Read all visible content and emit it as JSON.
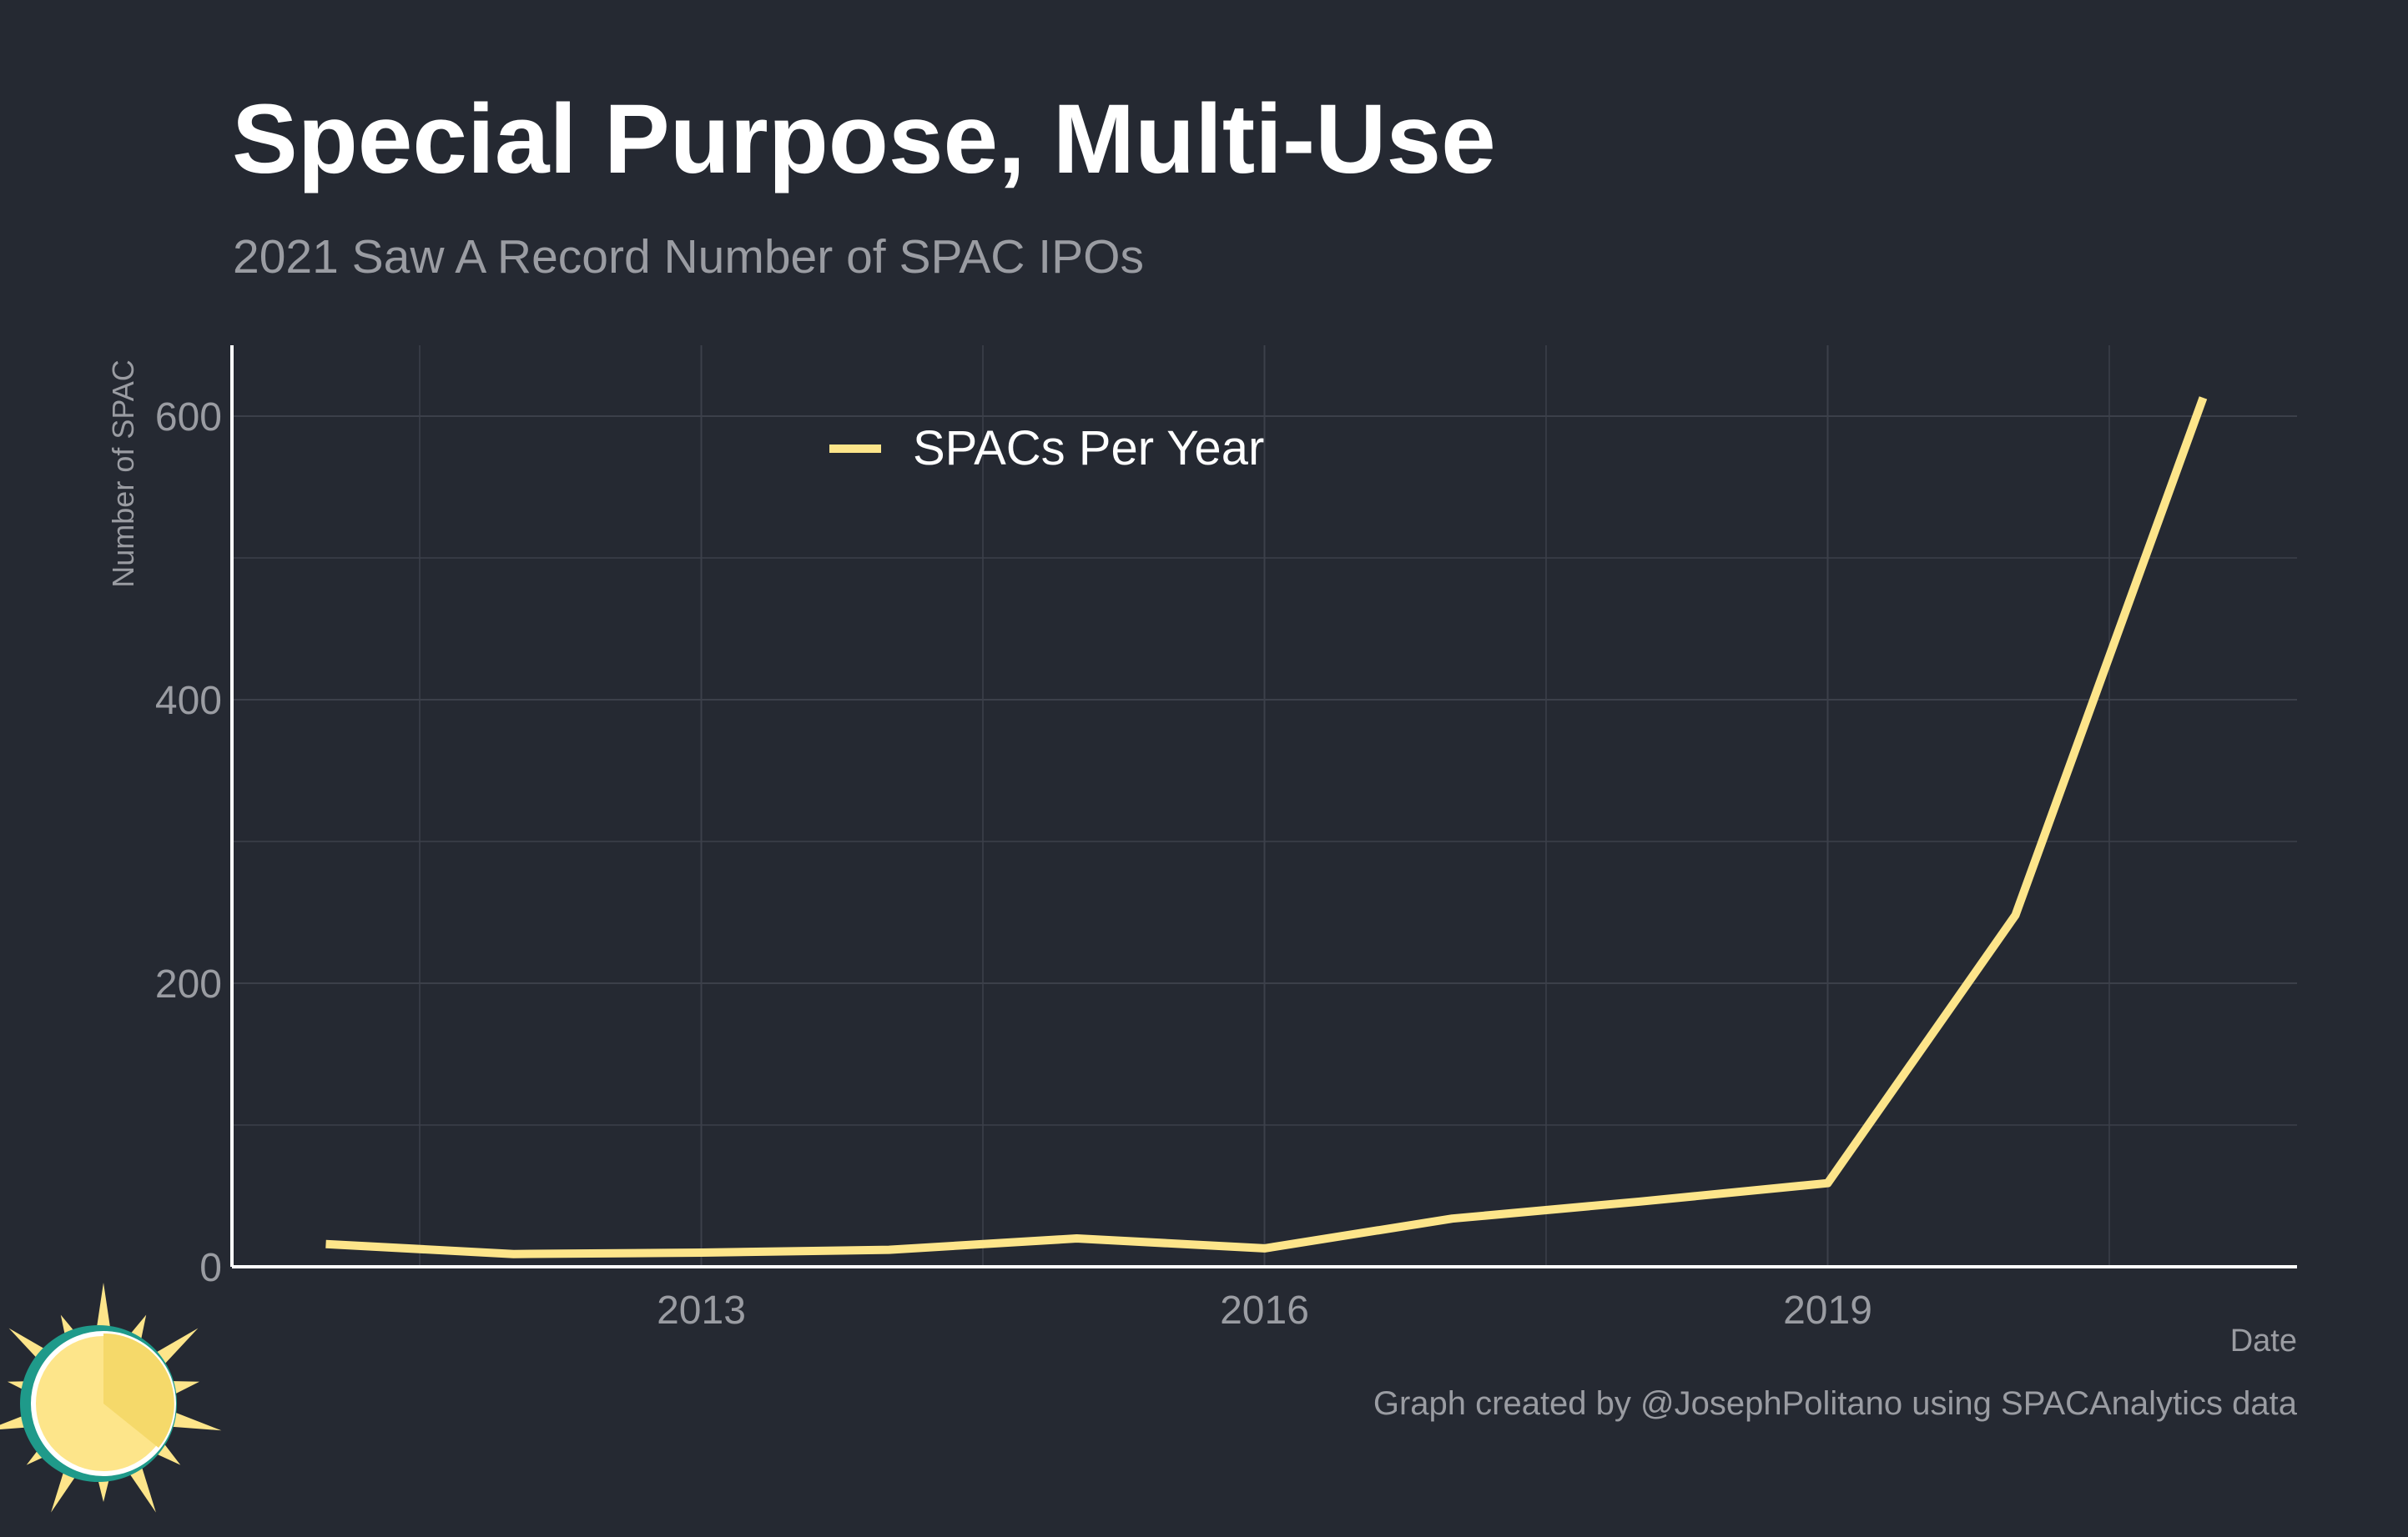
{
  "title": "Special Purpose, Multi-Use",
  "subtitle": "2021 Saw A Record Number of SPAC IPOs",
  "caption": "Graph created by @JosephPolitano using SPACAnalytics data",
  "logo_icon": "sun-icon",
  "colors": {
    "background": "#252932",
    "line": "#fde58a",
    "grid": "#3c404a",
    "text_muted": "#9a9ca2",
    "axis": "#ffffff"
  },
  "chart_data": {
    "type": "line",
    "title": "Special Purpose, Multi-Use",
    "subtitle": "2021 Saw A Record Number of SPAC IPOs",
    "xlabel": "Date",
    "ylabel": "Number of SPAC",
    "xlim": [
      2010.5,
      2021.5
    ],
    "ylim": [
      0,
      650
    ],
    "x_ticks": [
      2013,
      2016,
      2019
    ],
    "x_tick_labels": [
      "2013",
      "2016",
      "2019"
    ],
    "y_ticks": [
      0,
      200,
      400,
      600
    ],
    "y_tick_labels": [
      "0",
      "200",
      "400",
      "600"
    ],
    "grid": true,
    "legend_position": "top-center",
    "series": [
      {
        "name": "SPACs Per Year",
        "color": "#fde58a",
        "x": [
          2011,
          2012,
          2013,
          2014,
          2015,
          2016,
          2017,
          2018,
          2019,
          2020,
          2021
        ],
        "y": [
          16,
          9,
          10,
          12,
          20,
          13,
          34,
          46,
          59,
          248,
          613
        ]
      }
    ]
  }
}
